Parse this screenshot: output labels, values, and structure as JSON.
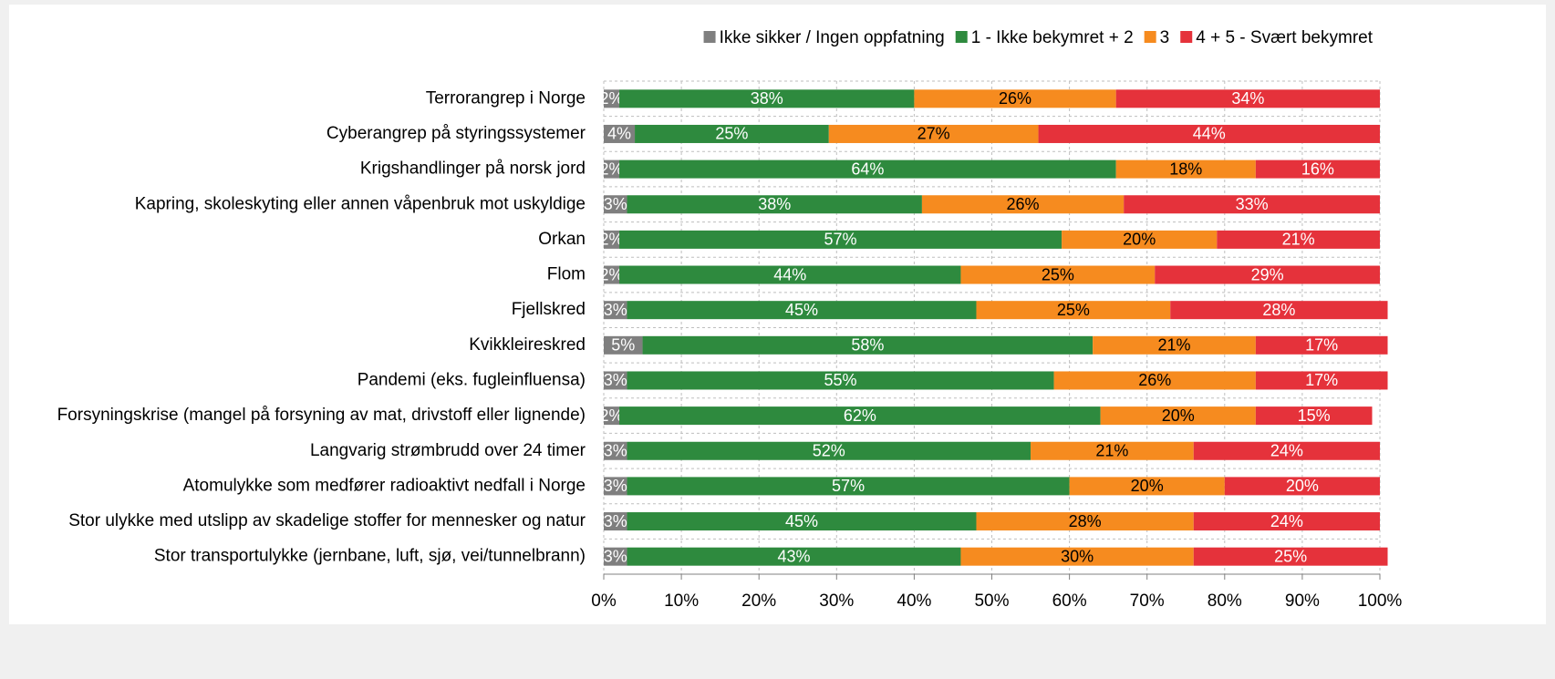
{
  "chart_data": {
    "type": "stacked-bar-horizontal",
    "categories": [
      "Terrorangrep i Norge",
      "Cyberangrep på styringssystemer",
      "Krigshandlinger på norsk jord",
      "Kapring, skoleskyting eller annen våpenbruk mot uskyldige",
      "Orkan",
      "Flom",
      "Fjellskred",
      "Kvikkleireskred",
      "Pandemi (eks. fugleinfluensa)",
      "Forsyningskrise (mangel på forsyning av mat, drivstoff eller lignende)",
      "Langvarig strømbrudd over 24 timer",
      "Atomulykke som medfører radioaktivt nedfall i Norge",
      "Stor ulykke med utslipp av skadelige stoffer for mennesker og natur",
      "Stor transportulykke (jernbane, luft, sjø, vei/tunnelbrann)"
    ],
    "series": [
      {
        "name": "Ikke sikker / Ingen oppfatning",
        "color": "#7f7f7f",
        "label_color": "#ffffff",
        "values": [
          2,
          4,
          2,
          3,
          2,
          2,
          3,
          5,
          3,
          2,
          3,
          3,
          3,
          3
        ],
        "value_labels": [
          "2%",
          "4%",
          "2%",
          "3%",
          "2%",
          "2%",
          "3%",
          "5%",
          "3%",
          "2%",
          "3%",
          "3%",
          "3%",
          "3%"
        ]
      },
      {
        "name": "1 - Ikke bekymret + 2",
        "color": "#2e8a3e",
        "label_color": "#ffffff",
        "values": [
          38,
          25,
          64,
          38,
          57,
          44,
          45,
          58,
          55,
          62,
          52,
          57,
          45,
          43
        ],
        "value_labels": [
          "38%",
          "25%",
          "64%",
          "38%",
          "57%",
          "44%",
          "45%",
          "58%",
          "55%",
          "62%",
          "52%",
          "57%",
          "45%",
          "43%"
        ]
      },
      {
        "name": "3",
        "color": "#f68b1f",
        "label_color": "#000000",
        "values": [
          26,
          27,
          18,
          26,
          20,
          25,
          25,
          21,
          26,
          20,
          21,
          20,
          28,
          30
        ],
        "value_labels": [
          "26%",
          "27%",
          "18%",
          "26%",
          "20%",
          "25%",
          "25%",
          "21%",
          "26%",
          "20%",
          "21%",
          "20%",
          "28%",
          "30%"
        ]
      },
      {
        "name": "4 + 5 - Svært bekymret",
        "color": "#e5323b",
        "label_color": "#ffffff",
        "values": [
          34,
          44,
          16,
          33,
          21,
          29,
          28,
          17,
          17,
          15,
          24,
          20,
          24,
          25
        ],
        "value_labels": [
          "34%",
          "44%",
          "16%",
          "33%",
          "21%",
          "29%",
          "28%",
          "17%",
          "17%",
          "15%",
          "24%",
          "20%",
          "24%",
          "25%"
        ]
      }
    ],
    "xlim": [
      0,
      100
    ],
    "xticks": [
      {
        "value": 0,
        "label": "0%"
      },
      {
        "value": 10,
        "label": "10%"
      },
      {
        "value": 20,
        "label": "20%"
      },
      {
        "value": 30,
        "label": "30%"
      },
      {
        "value": 40,
        "label": "40%"
      },
      {
        "value": 50,
        "label": "50%"
      },
      {
        "value": 60,
        "label": "60%"
      },
      {
        "value": 70,
        "label": "70%"
      },
      {
        "value": 80,
        "label": "80%"
      },
      {
        "value": 90,
        "label": "90%"
      },
      {
        "value": 100,
        "label": "100%"
      }
    ],
    "grid": true,
    "legend": "top"
  }
}
